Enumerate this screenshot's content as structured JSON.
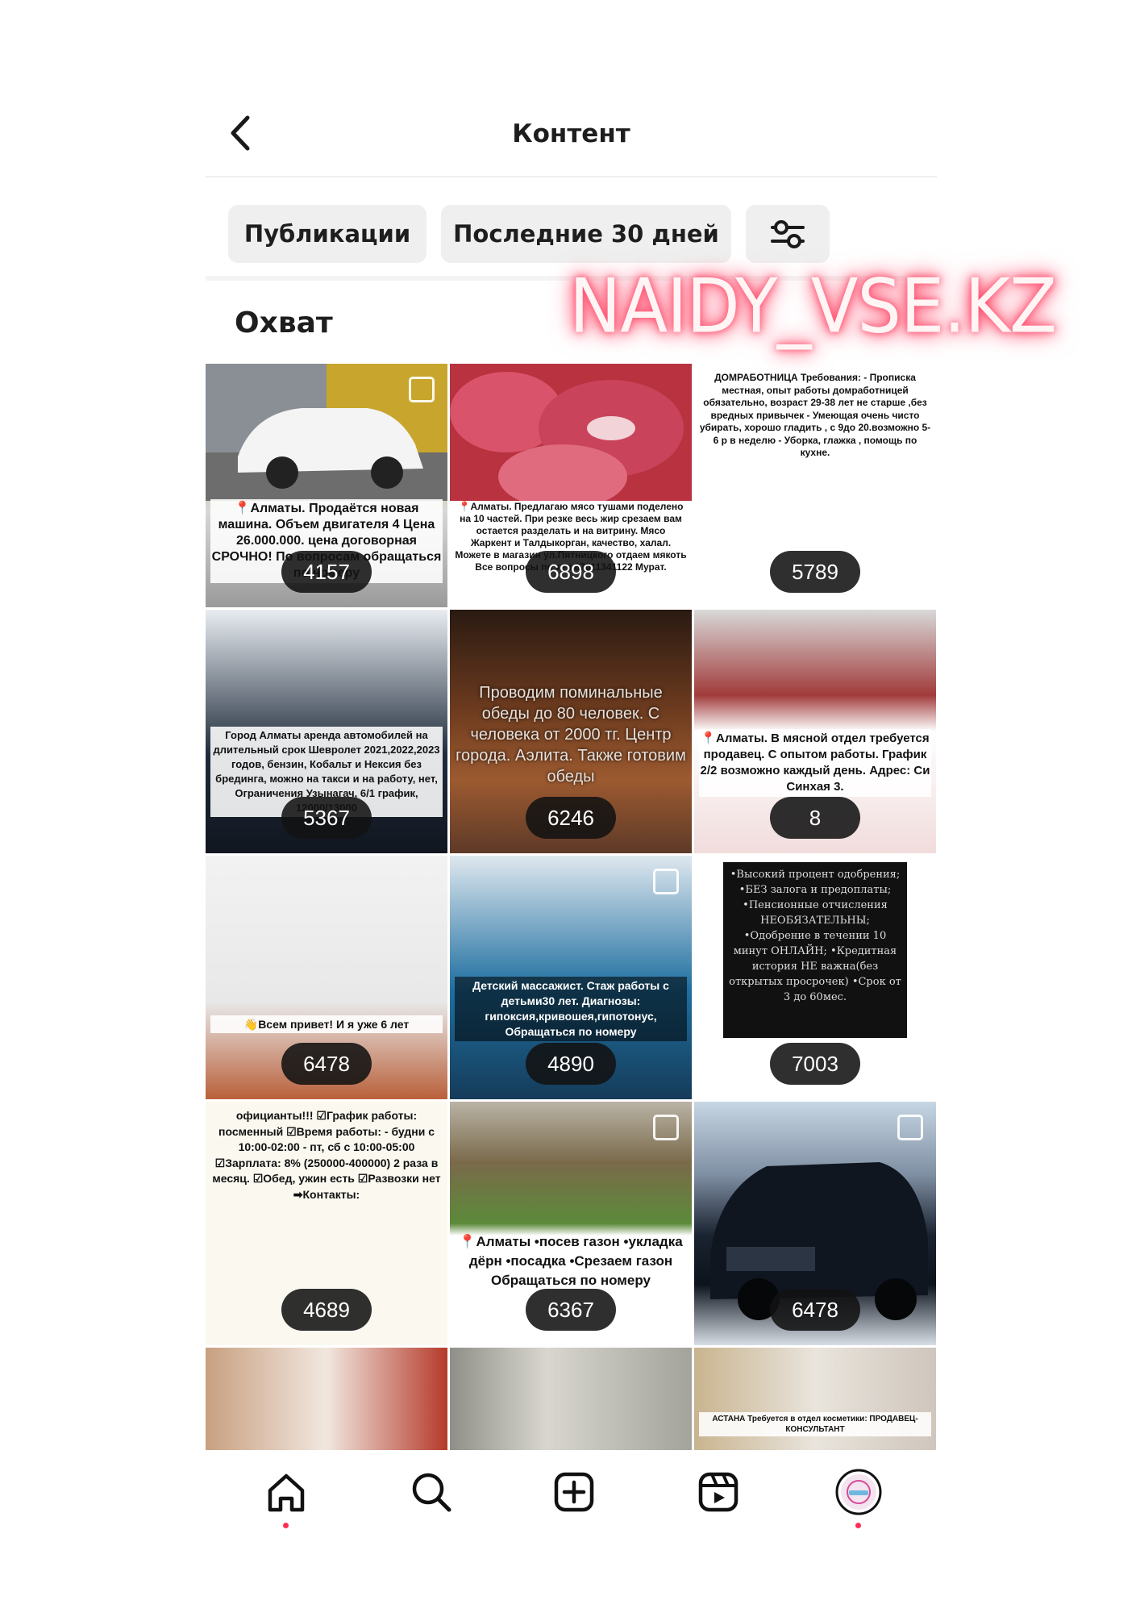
{
  "header": {
    "title": "Контент"
  },
  "filters": {
    "type_label": "Публикации",
    "period_label": "Последние 30 дней",
    "settings_icon": "sliders-icon"
  },
  "section": {
    "title": "Охват"
  },
  "watermark": "NAIDY_VSE.KZ",
  "posts": [
    {
      "caption": "📍Алматы. Продаётся новая машина. Объем двигателя 4 Цена 26.000.000. цена договорная СРОЧНО! По вопросам обращаться по номеру",
      "count": "4157"
    },
    {
      "caption": "📍Алматы. Предлагаю мясо тушами поделено на 10 частей. При резке весь жир срезаем вам остается разделать и на витрину. Мясо Жаркент и Талдыкорган, качество, халал. Можете в магазин ул.Пятницкого отдаем мякоть Все вопросы по тел.87011341122 Мурат.",
      "count": "6898"
    },
    {
      "caption": "ДОМРАБОТНИЦА Требования: - Прописка местная, опыт работы домработницей обязательно, возраст 29-38 лет не старше ,без вредных привычек - Умеющая очень чисто убирать, хорошо гладить , с 9до 20.возможно 5-6 р в неделю - Уборка, глажка , помощь по кухне.",
      "count": "5789"
    },
    {
      "caption": "Город Алматы аренда автомобилей на длительный срок Шевролет 2021,2022,2023 годов, бензин, Кобальт и Нексия без брединга, можно на такси и на работу, нет, Ограничения Узынагач, 6/1 график, 12000/13000",
      "count": "5367"
    },
    {
      "caption": "Проводим поминальные обеды до 80 человек. С человека от 2000 тг. Центр города. Аэлита. Также готовим обеды",
      "count": "6246"
    },
    {
      "caption": "📍Алматы. В мясной отдел требуется продавец. С опытом работы. График 2/2 возможно каждый день. Адрес: Си Синхая 3.",
      "count": "8"
    },
    {
      "caption": "👋Всем привет! И я уже 6 лет",
      "count": "6478"
    },
    {
      "caption": "Детский массажист. Стаж работы с детьми30 лет. Диагнозы: гипоксия,кривошея,гипотонус, Обращаться по номеру",
      "count": "4890"
    },
    {
      "caption": "•Высокий процент одобрения; •БЕЗ залога и предоплаты; •Пенсионные отчисления НЕОБЯЗАТЕЛЬНЫ; •Одобрение в течении 10 минут ОНЛАЙН; •Кредитная история НЕ важна(без открытых просрочек) •Срок от 3 до 60мес.",
      "count": "7003"
    },
    {
      "caption": "официанты!!! ☑График работы: посменный ☑Время работы: - будни с 10:00-02:00 - пт, сб с 10:00-05:00 ☑Зарплата: 8% (250000-400000) 2 раза в месяц. ☑Обед, ужин есть ☑Развозки нет ➡Контакты:",
      "count": "4689"
    },
    {
      "caption": "📍Алматы •посев газон •укладка дёрн •посадка •Срезаем газон Обращаться по номеру",
      "count": "6367"
    },
    {
      "caption": "",
      "count": "6478"
    },
    {
      "caption": "",
      "count": ""
    },
    {
      "caption": "",
      "count": ""
    },
    {
      "caption": "АСТАНА Требуется в отдел косметики: ПРОДАВЕЦ-КОНСУЛЬТАНТ",
      "count": ""
    }
  ],
  "nav": {
    "home_icon": "home-icon",
    "search_icon": "search-icon",
    "create_icon": "plus-square-icon",
    "reels_icon": "reels-icon",
    "profile_icon": "avatar"
  },
  "colors": {
    "accent": "#ff2d55",
    "chip_bg": "#efefef",
    "text": "#1e1e1e"
  }
}
